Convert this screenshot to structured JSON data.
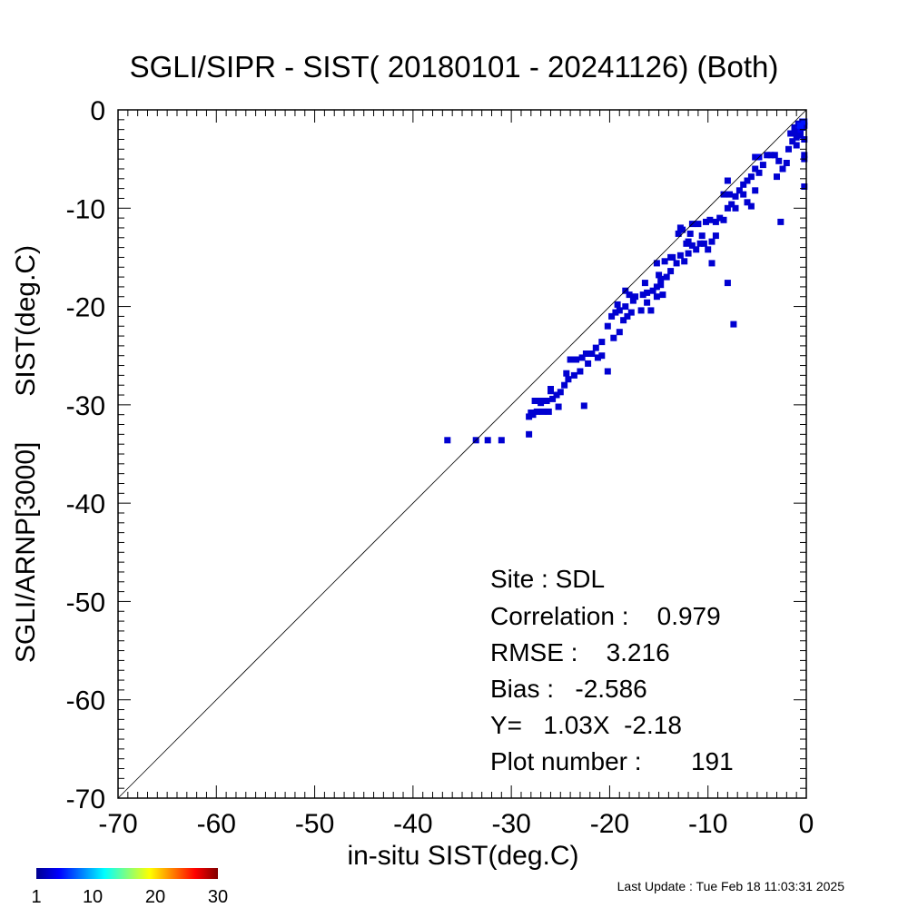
{
  "title": "SGLI/SIPR - SIST( 20180101 - 20241126) (Both)",
  "footer": "Last Update : Tue Feb 18 11:03:31 2025",
  "stats": {
    "site": "Site : SDL",
    "correlation": "Correlation :    0.979",
    "rmse": "RMSE :    3.216",
    "bias": "Bias :   -2.586",
    "fit": "Y=   1.03X  -2.18",
    "plot_number": "Plot number :       191"
  },
  "colorbar": {
    "tick_labels": [
      "1",
      "10",
      "20",
      "30"
    ],
    "tick_values": [
      1,
      10,
      20,
      30
    ],
    "min": 1,
    "max": 30
  },
  "chart_data": {
    "type": "heatmap",
    "title": "SGLI/SIPR - SIST( 20180101 - 20241126) (Both)",
    "xlabel": "in-situ SIST(deg.C)",
    "ylabel": "SGLI/ARNP[3000]      SIST(deg.C)",
    "xlim": [
      -70,
      0
    ],
    "ylim": [
      -70,
      0
    ],
    "xticks": [
      -70,
      -60,
      -50,
      -40,
      -30,
      -20,
      -10,
      0
    ],
    "yticks": [
      -70,
      -60,
      -50,
      -40,
      -30,
      -20,
      -10,
      0
    ],
    "reference_line": "y = x",
    "colormap": "jet",
    "points": [
      [
        -36.5,
        -33.6,
        1
      ],
      [
        -33.6,
        -33.6,
        1
      ],
      [
        -32.4,
        -33.6,
        1
      ],
      [
        -31.0,
        -33.6,
        1
      ],
      [
        -28.2,
        -33.0,
        1
      ],
      [
        -28.2,
        -31.2,
        1
      ],
      [
        -27.8,
        -31.0,
        1
      ],
      [
        -27.4,
        -30.7,
        1
      ],
      [
        -26.8,
        -30.7,
        1
      ],
      [
        -26.2,
        -30.7,
        1
      ],
      [
        -27.6,
        -29.6,
        1
      ],
      [
        -27.0,
        -29.6,
        1
      ],
      [
        -26.4,
        -29.6,
        1
      ],
      [
        -25.8,
        -29.4,
        1
      ],
      [
        -25.4,
        -29.0,
        1
      ],
      [
        -26.0,
        -28.6,
        1
      ],
      [
        -26.0,
        -28.4,
        1
      ],
      [
        -25.0,
        -28.7,
        1
      ],
      [
        -24.6,
        -28.0,
        1
      ],
      [
        -24.2,
        -27.4,
        1
      ],
      [
        -23.6,
        -27.0,
        1
      ],
      [
        -25.2,
        -30.2,
        1
      ],
      [
        -22.6,
        -30.1,
        1
      ],
      [
        -23.0,
        -26.6,
        1
      ],
      [
        -24.0,
        -25.4,
        1
      ],
      [
        -23.4,
        -25.4,
        1
      ],
      [
        -22.8,
        -25.2,
        1
      ],
      [
        -22.4,
        -24.8,
        1
      ],
      [
        -21.8,
        -24.8,
        1
      ],
      [
        -22.2,
        -25.8,
        1
      ],
      [
        -21.2,
        -25.2,
        1
      ],
      [
        -20.8,
        -25.0,
        1
      ],
      [
        -21.4,
        -24.2,
        1
      ],
      [
        -20.8,
        -23.6,
        1
      ],
      [
        -20.2,
        -26.6,
        1
      ],
      [
        -19.6,
        -23.2,
        1
      ],
      [
        -19.0,
        -22.6,
        1
      ],
      [
        -19.8,
        -21.0,
        1
      ],
      [
        -19.4,
        -20.6,
        1
      ],
      [
        -19.0,
        -20.4,
        1
      ],
      [
        -18.6,
        -21.4,
        1
      ],
      [
        -18.2,
        -21.0,
        1
      ],
      [
        -19.2,
        -19.8,
        1
      ],
      [
        -18.4,
        -20.0,
        1
      ],
      [
        -17.8,
        -20.6,
        1
      ],
      [
        -18.4,
        -18.4,
        1
      ],
      [
        -18.0,
        -18.8,
        1
      ],
      [
        -17.6,
        -19.4,
        1
      ],
      [
        -16.8,
        -20.4,
        1
      ],
      [
        -16.6,
        -18.8,
        1
      ],
      [
        -16.2,
        -19.6,
        1
      ],
      [
        -15.8,
        -20.4,
        1
      ],
      [
        -16.2,
        -18.6,
        1
      ],
      [
        -15.6,
        -18.4,
        1
      ],
      [
        -15.2,
        -19.0,
        1
      ],
      [
        -14.6,
        -18.8,
        1
      ],
      [
        -15.2,
        -18.0,
        1
      ],
      [
        -14.8,
        -17.8,
        1
      ],
      [
        -15.2,
        -15.6,
        1
      ],
      [
        -15.0,
        -16.8,
        1
      ],
      [
        -14.8,
        -17.2,
        1
      ],
      [
        -14.2,
        -17.0,
        1
      ],
      [
        -13.8,
        -16.4,
        1
      ],
      [
        -14.4,
        -15.4,
        1
      ],
      [
        -13.6,
        -15.0,
        1
      ],
      [
        -13.2,
        -15.6,
        1
      ],
      [
        -12.8,
        -14.8,
        1
      ],
      [
        -12.4,
        -15.4,
        1
      ],
      [
        -12.0,
        -14.6,
        1
      ],
      [
        -11.6,
        -13.8,
        1
      ],
      [
        -11.2,
        -14.2,
        1
      ],
      [
        -10.8,
        -13.6,
        1
      ],
      [
        -10.4,
        -13.6,
        1
      ],
      [
        -10.0,
        -14.2,
        1
      ],
      [
        -9.6,
        -15.6,
        1
      ],
      [
        -12.6,
        -12.2,
        1
      ],
      [
        -12.2,
        -13.6,
        1
      ],
      [
        -11.8,
        -12.6,
        1
      ],
      [
        -11.6,
        -11.6,
        1
      ],
      [
        -11.0,
        -11.6,
        1
      ],
      [
        -10.6,
        -12.8,
        1
      ],
      [
        -10.2,
        -11.4,
        1
      ],
      [
        -9.8,
        -11.2,
        1
      ],
      [
        -9.2,
        -11.4,
        1
      ],
      [
        -8.8,
        -11.0,
        1
      ],
      [
        -8.4,
        -11.2,
        1
      ],
      [
        -8.0,
        -10.0,
        1
      ],
      [
        -7.6,
        -9.6,
        1
      ],
      [
        -8.4,
        -8.6,
        1
      ],
      [
        -7.8,
        -8.6,
        1
      ],
      [
        -7.2,
        -8.8,
        1
      ],
      [
        -6.8,
        -8.2,
        1
      ],
      [
        -6.4,
        -8.6,
        1
      ],
      [
        -6.0,
        -9.4,
        1
      ],
      [
        -5.6,
        -9.8,
        1
      ],
      [
        -5.2,
        -8.2,
        1
      ],
      [
        -6.0,
        -7.2,
        1
      ],
      [
        -5.6,
        -6.8,
        1
      ],
      [
        -5.2,
        -6.0,
        1
      ],
      [
        -4.8,
        -6.4,
        1
      ],
      [
        -4.4,
        -5.6,
        1
      ],
      [
        -4.0,
        -4.6,
        1
      ],
      [
        -3.6,
        -4.6,
        1
      ],
      [
        -3.2,
        -4.6,
        1
      ],
      [
        -2.8,
        -5.2,
        1
      ],
      [
        -2.4,
        -6.0,
        1
      ],
      [
        -2.0,
        -5.4,
        1
      ],
      [
        -1.8,
        -4.0,
        1
      ],
      [
        -1.4,
        -3.2,
        1
      ],
      [
        -1.0,
        -2.8,
        1
      ],
      [
        -0.6,
        -2.2,
        1
      ],
      [
        -0.2,
        -1.6,
        1
      ],
      [
        -0.8,
        -1.4,
        1
      ],
      [
        -0.4,
        -1.2,
        1
      ],
      [
        -1.2,
        -1.8,
        1
      ],
      [
        -0.6,
        -2.6,
        1
      ],
      [
        -0.2,
        -3.0,
        1
      ],
      [
        -0.2,
        -4.6,
        1
      ],
      [
        -0.2,
        -5.0,
        1
      ],
      [
        -0.2,
        -7.8,
        1
      ],
      [
        -2.6,
        -11.4,
        1
      ],
      [
        -7.4,
        -21.8,
        1
      ],
      [
        -8.0,
        -17.6,
        1
      ],
      [
        -8.0,
        -7.2,
        1
      ],
      [
        -9.2,
        -12.8,
        1
      ],
      [
        -9.6,
        -13.4,
        1
      ],
      [
        -13.0,
        -12.6,
        1
      ],
      [
        -12.8,
        -12.0,
        1
      ],
      [
        -7.2,
        -10.0,
        1
      ],
      [
        -5.2,
        -4.8,
        1
      ],
      [
        -3.0,
        -6.8,
        1
      ],
      [
        -4.8,
        -4.8,
        2
      ],
      [
        -1.6,
        -2.4,
        1
      ],
      [
        -0.8,
        -2.0,
        2
      ],
      [
        -0.4,
        -1.8,
        1
      ],
      [
        -1.2,
        -2.2,
        1
      ],
      [
        -1.0,
        -3.6,
        1
      ],
      [
        -0.6,
        -1.6,
        3
      ],
      [
        -0.2,
        -1.2,
        3
      ],
      [
        -13.8,
        -15.0,
        1
      ],
      [
        -16.4,
        -17.6,
        1
      ],
      [
        -20.2,
        -22.0,
        1
      ],
      [
        -24.4,
        -26.8,
        1
      ],
      [
        -27.0,
        -29.8,
        1
      ],
      [
        -28.0,
        -30.8,
        1
      ],
      [
        -17.4,
        -19.0,
        1
      ],
      [
        -12.0,
        -13.4,
        1
      ],
      [
        -6.4,
        -7.6,
        1
      ]
    ]
  }
}
